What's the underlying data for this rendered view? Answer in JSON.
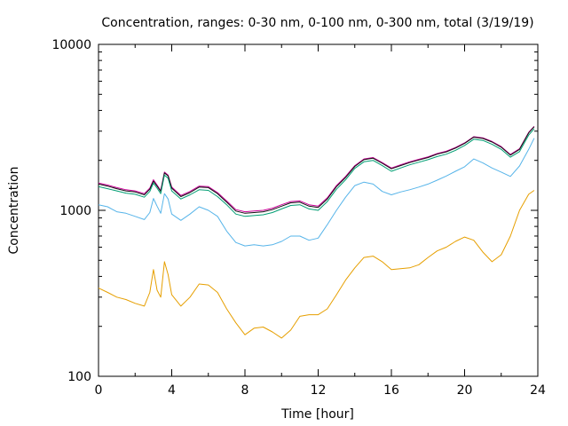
{
  "chart_data": {
    "type": "line",
    "title": "Concentration, ranges: 0-30 nm, 0-100 nm, 0-300 nm, total (3/19/19)",
    "xlabel": "Time [hour]",
    "ylabel": "Concentration",
    "xlim": [
      0,
      24
    ],
    "ylim": [
      100,
      10000
    ],
    "yscale": "log",
    "x_ticks": [
      "0",
      "4",
      "8",
      "12",
      "16",
      "20",
      "24"
    ],
    "y_ticks": [
      "100",
      "1000",
      "10000"
    ],
    "grid": false,
    "legend": "none",
    "x": [
      0,
      0.5,
      1,
      1.5,
      2,
      2.5,
      2.8,
      3,
      3.2,
      3.4,
      3.6,
      3.8,
      4,
      4.5,
      5,
      5.5,
      6,
      6.5,
      7,
      7.5,
      8,
      8.5,
      9,
      9.5,
      10,
      10.5,
      11,
      11.5,
      12,
      12.5,
      13,
      13.5,
      14,
      14.5,
      15,
      15.5,
      16,
      16.5,
      17,
      17.5,
      18,
      18.5,
      19,
      19.5,
      20,
      20.5,
      21,
      21.5,
      22,
      22.5,
      23,
      23.5,
      23.8
    ],
    "series": [
      {
        "color": "#cc0099",
        "values": [
          1460,
          1420,
          1370,
          1330,
          1310,
          1260,
          1360,
          1530,
          1420,
          1320,
          1700,
          1630,
          1380,
          1230,
          1300,
          1400,
          1390,
          1280,
          1140,
          1010,
          980,
          990,
          1000,
          1030,
          1080,
          1130,
          1140,
          1080,
          1060,
          1190,
          1410,
          1600,
          1860,
          2040,
          2080,
          1940,
          1800,
          1880,
          1960,
          2030,
          2100,
          2200,
          2270,
          2390,
          2550,
          2780,
          2730,
          2600,
          2420,
          2170,
          2350,
          2950,
          3210
        ]
      },
      {
        "color": "#111111",
        "values": [
          1440,
          1400,
          1350,
          1310,
          1290,
          1240,
          1340,
          1500,
          1400,
          1300,
          1680,
          1610,
          1360,
          1210,
          1280,
          1380,
          1370,
          1260,
          1120,
          990,
          960,
          970,
          980,
          1010,
          1060,
          1110,
          1120,
          1060,
          1040,
          1170,
          1390,
          1580,
          1840,
          2020,
          2060,
          1920,
          1780,
          1860,
          1940,
          2010,
          2080,
          2180,
          2250,
          2370,
          2530,
          2760,
          2710,
          2580,
          2400,
          2150,
          2330,
          2930,
          3190
        ]
      },
      {
        "color": "#009e73",
        "values": [
          1390,
          1350,
          1310,
          1270,
          1250,
          1200,
          1300,
          1460,
          1360,
          1260,
          1630,
          1560,
          1310,
          1170,
          1240,
          1330,
          1320,
          1210,
          1080,
          950,
          920,
          930,
          940,
          970,
          1020,
          1070,
          1080,
          1020,
          1000,
          1130,
          1340,
          1530,
          1790,
          1960,
          2000,
          1860,
          1720,
          1800,
          1880,
          1950,
          2020,
          2110,
          2180,
          2300,
          2460,
          2680,
          2640,
          2500,
          2330,
          2090,
          2260,
          2840,
          3100
        ]
      },
      {
        "color": "#56b4e9",
        "values": [
          1080,
          1050,
          980,
          960,
          920,
          880,
          970,
          1180,
          1060,
          960,
          1260,
          1170,
          950,
          870,
          950,
          1050,
          1000,
          920,
          750,
          640,
          610,
          620,
          610,
          620,
          650,
          700,
          700,
          660,
          680,
          820,
          1000,
          1200,
          1410,
          1480,
          1440,
          1300,
          1240,
          1290,
          1330,
          1380,
          1440,
          1520,
          1610,
          1720,
          1830,
          2040,
          1930,
          1800,
          1700,
          1600,
          1850,
          2330,
          2720
        ]
      },
      {
        "color": "#e69f00",
        "values": [
          340,
          320,
          300,
          290,
          275,
          265,
          320,
          440,
          330,
          300,
          490,
          410,
          310,
          265,
          300,
          360,
          355,
          320,
          255,
          210,
          178,
          195,
          198,
          185,
          170,
          190,
          230,
          235,
          235,
          255,
          310,
          380,
          450,
          520,
          530,
          490,
          440,
          445,
          450,
          470,
          520,
          570,
          600,
          650,
          690,
          660,
          560,
          490,
          540,
          700,
          1000,
          1250,
          1320
        ]
      }
    ]
  }
}
